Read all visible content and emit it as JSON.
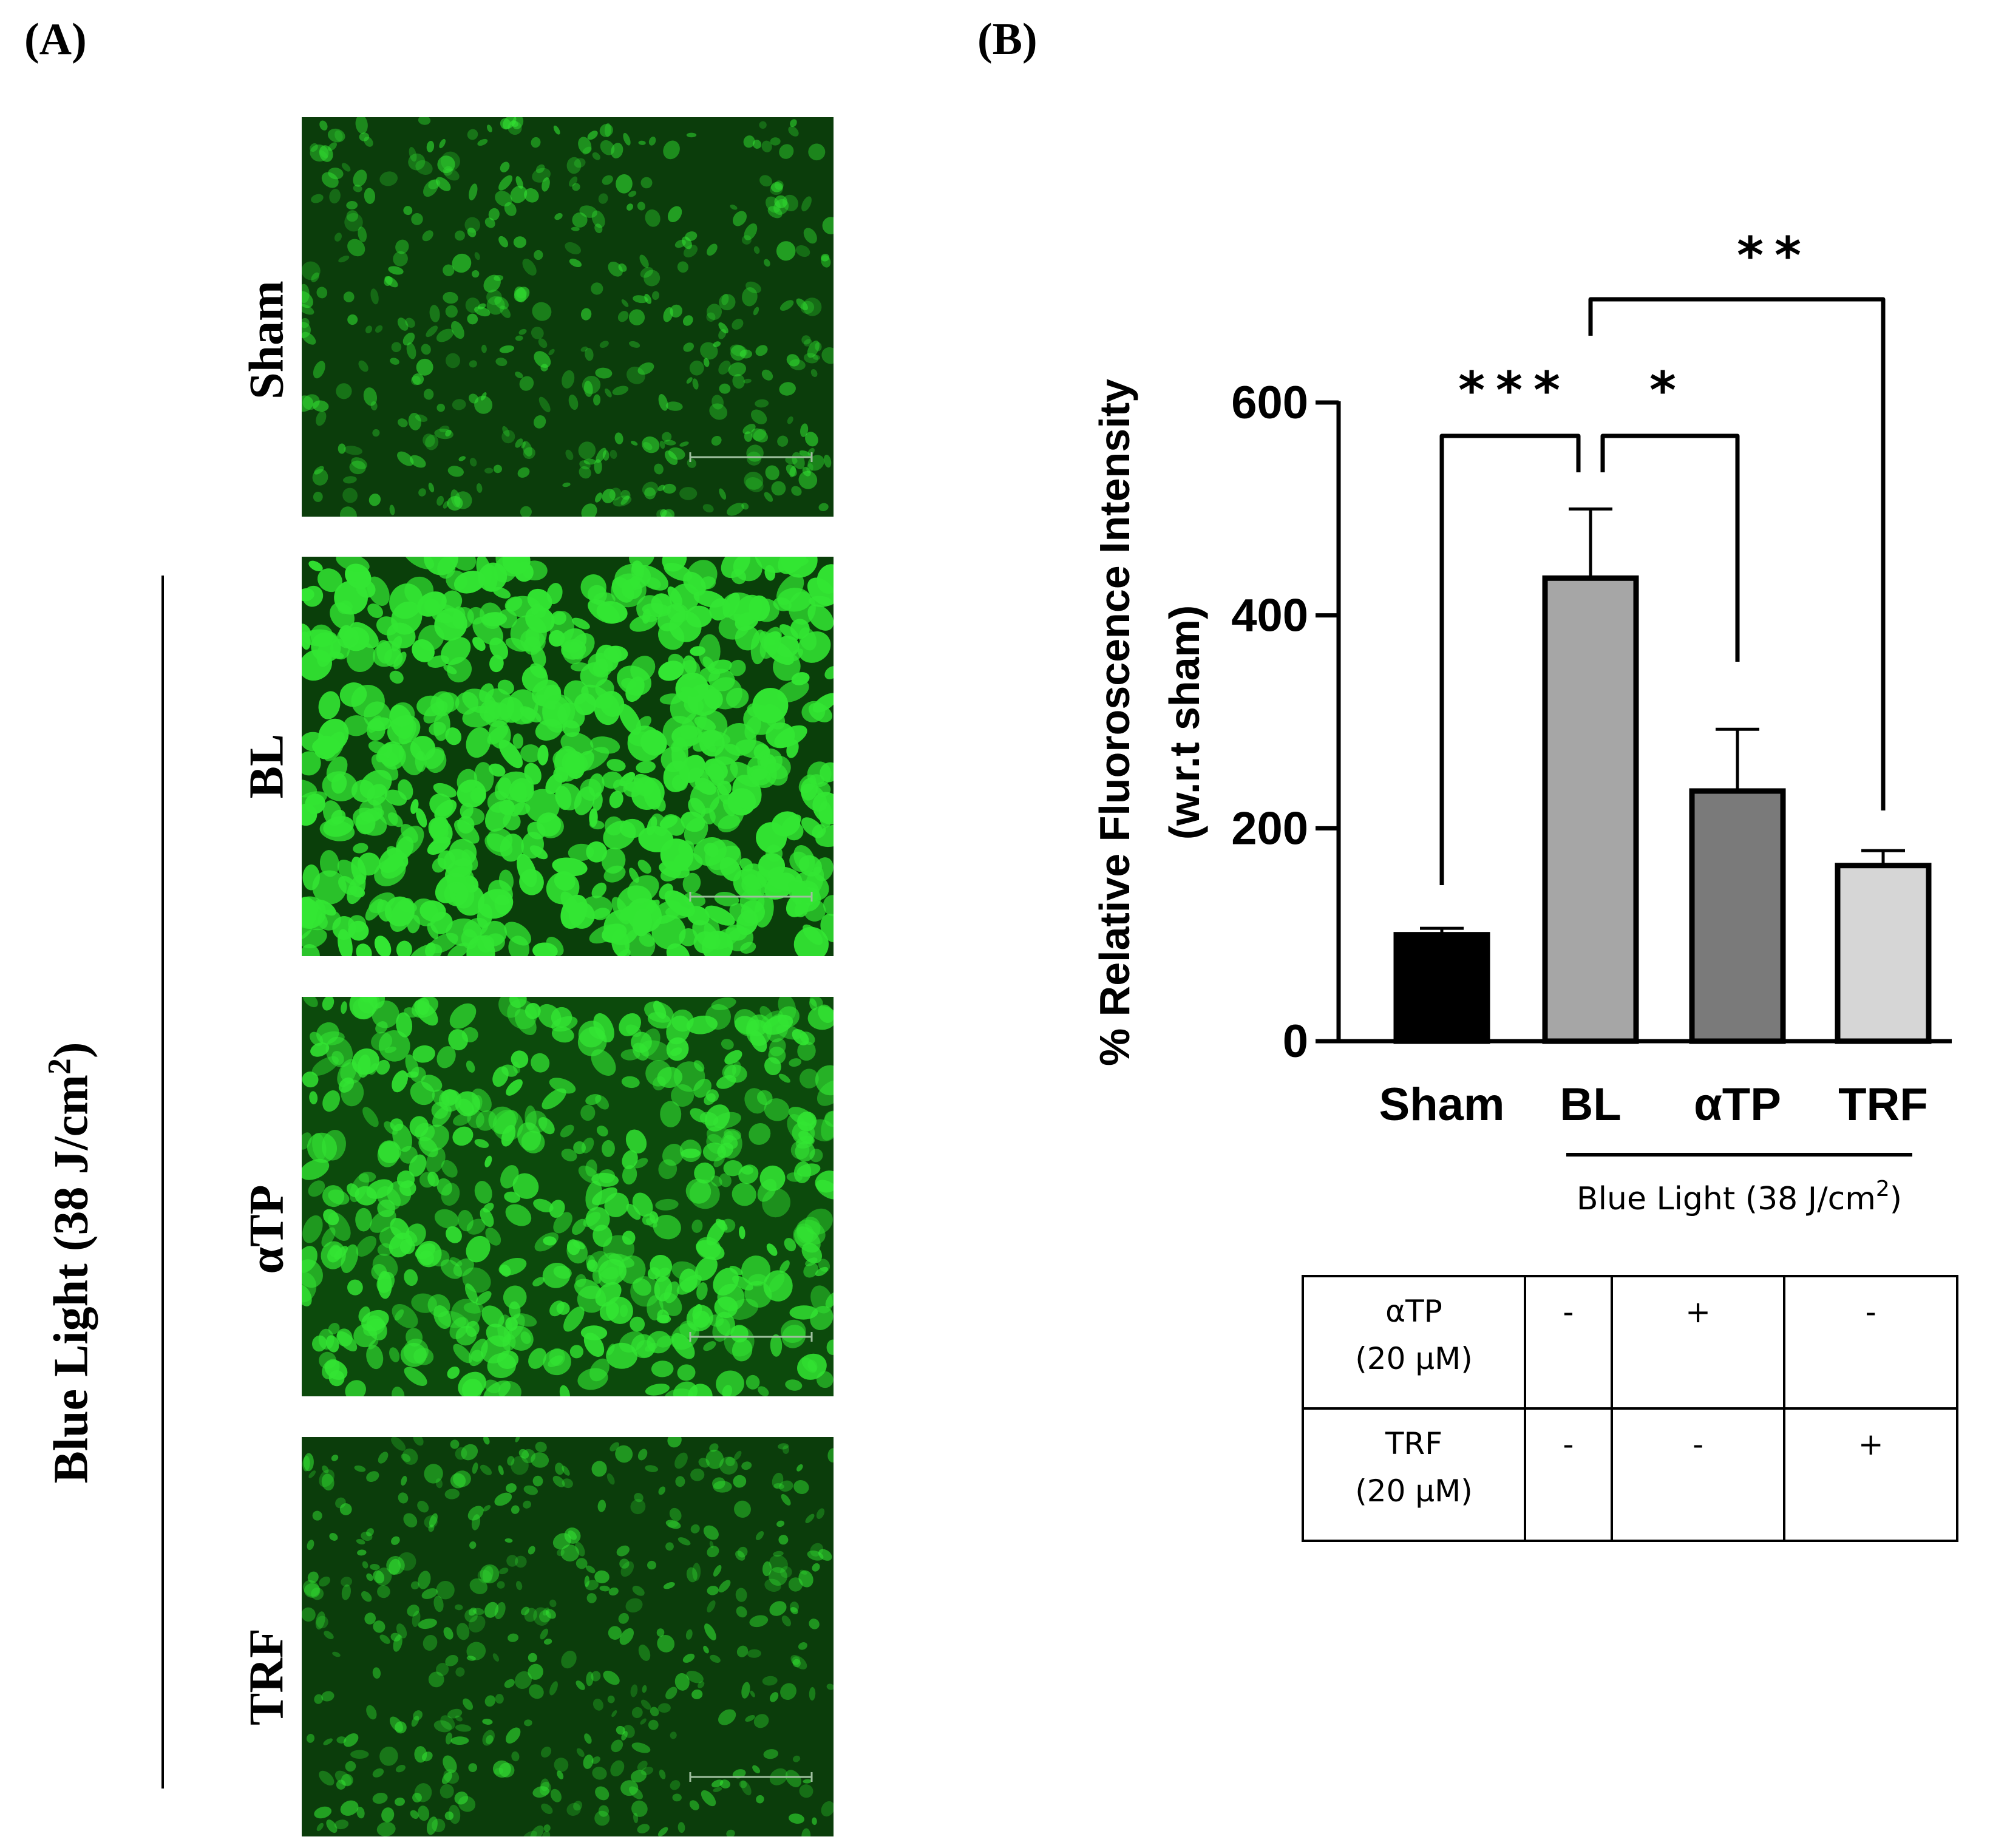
{
  "panel_a": {
    "label": "(A)",
    "group_label": "Blue Light (38 J/cm",
    "group_label_sup": "2",
    "group_label_close": ")",
    "rows": [
      {
        "label": "Sham",
        "brightness": "low"
      },
      {
        "label": "BL",
        "brightness": "high"
      },
      {
        "label": "αTP",
        "brightness": "medium"
      },
      {
        "label": "TRF",
        "brightness": "low"
      }
    ]
  },
  "panel_b": {
    "label": "(B)",
    "group_label": "Blue Light (38 J/cm",
    "group_label_sup": "2",
    "group_label_close": ")"
  },
  "chart_data": {
    "type": "bar",
    "categories": [
      "Sham",
      "BL",
      "αTP",
      "TRF"
    ],
    "values": [
      100,
      435,
      235,
      165
    ],
    "errors": [
      6,
      65,
      58,
      14
    ],
    "colors": [
      "#000000",
      "#a6a6a6",
      "#7a7a7a",
      "#d6d6d6"
    ],
    "ylabel_line1": "% Relative Fluoroscence Intensity",
    "ylabel_line2": "(w.r.t sham)",
    "ylim": [
      0,
      600
    ],
    "yticks": [
      0,
      200,
      400,
      600
    ],
    "significance": [
      {
        "from": "Sham",
        "to": "BL",
        "label": "***"
      },
      {
        "from": "BL",
        "to": "αTP",
        "label": "*"
      },
      {
        "from": "BL",
        "to": "TRF",
        "label": "**"
      }
    ]
  },
  "table": {
    "rows": [
      {
        "line1": "αTP",
        "line2": "(20 μM)",
        "cells": [
          "-",
          "+",
          "-"
        ]
      },
      {
        "line1": "TRF",
        "line2": "(20 μM)",
        "cells": [
          "-",
          "-",
          "+"
        ]
      }
    ]
  },
  "colors": {
    "micro_bg": "#0a3a0a",
    "cell_green": "#33e633"
  }
}
